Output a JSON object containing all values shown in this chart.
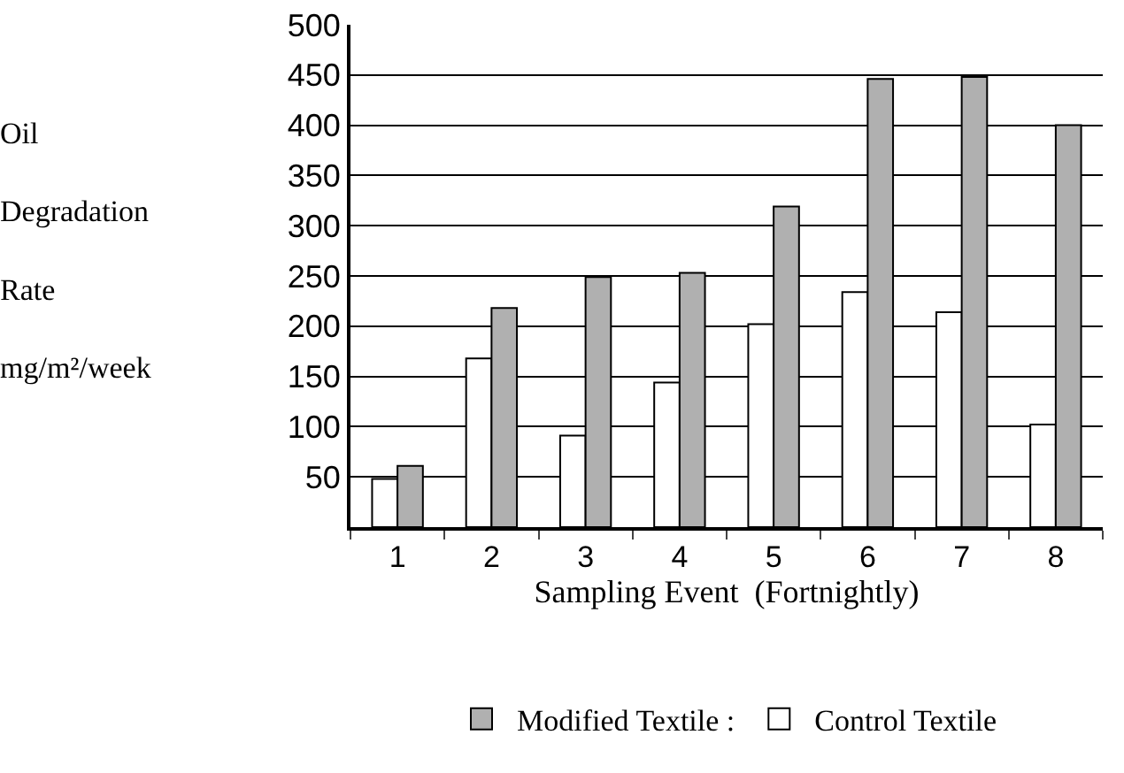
{
  "chart_data": {
    "type": "bar",
    "ylabel": "Oil Degradation Rate mg/m²/week",
    "xlabel": "Sampling Event  (Fortnightly)",
    "categories": [
      "1",
      "2",
      "3",
      "4",
      "5",
      "6",
      "7",
      "8"
    ],
    "series": [
      {
        "name": "Control Textile",
        "color": "#ffffff",
        "values": [
          48,
          168,
          91,
          144,
          202,
          234,
          214,
          102
        ]
      },
      {
        "name": "Modified Textile :",
        "color": "#b0b0b0",
        "values": [
          61,
          218,
          249,
          253,
          319,
          446,
          448,
          400
        ]
      }
    ],
    "ylim": [
      0,
      500
    ],
    "yticks": [
      {
        "value": 0,
        "label": null
      },
      50,
      100,
      150,
      200,
      250,
      300,
      350,
      400,
      450,
      500
    ],
    "grid": "y",
    "legend": "bottom"
  }
}
